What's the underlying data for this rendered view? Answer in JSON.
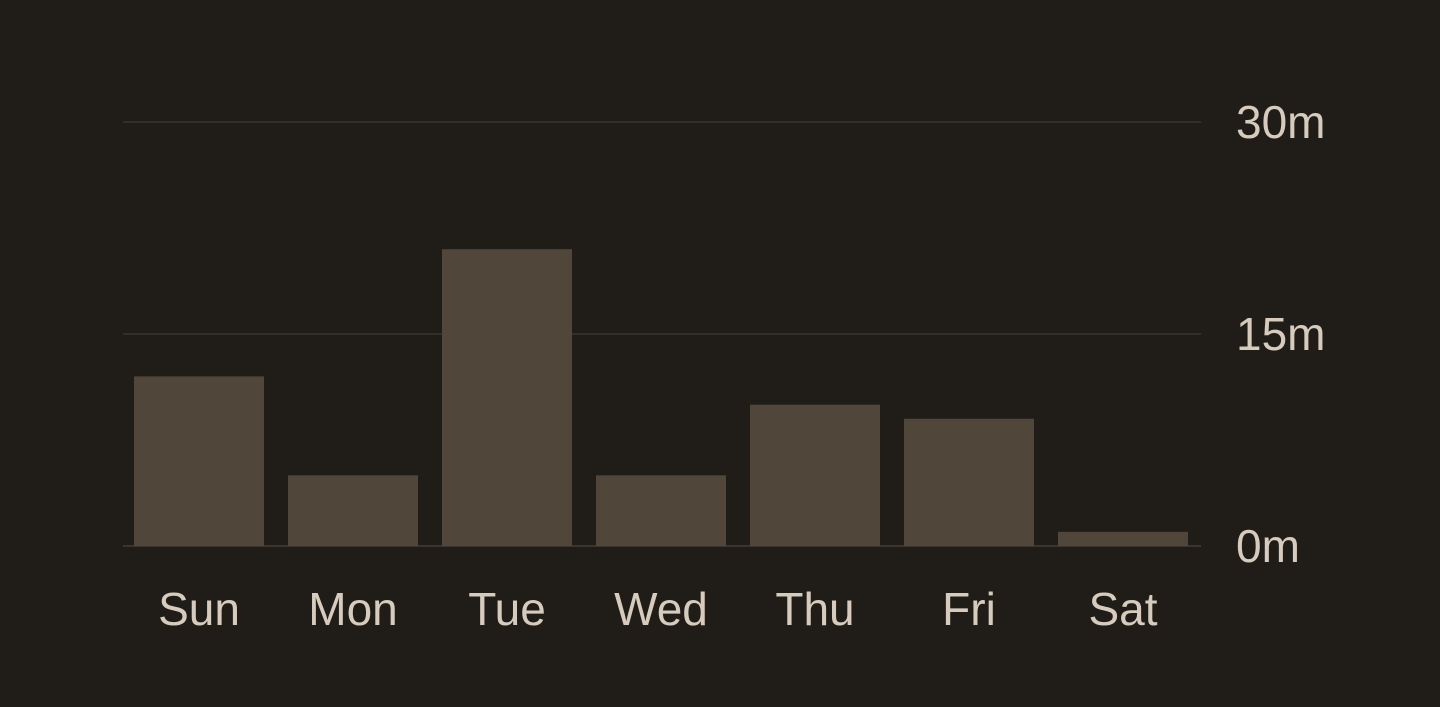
{
  "colors": {
    "background": "#201d19",
    "bar": "#50463a",
    "gridline": "#3a352e",
    "text": "#d6cbbd"
  },
  "chart_data": {
    "type": "bar",
    "title": "",
    "xlabel": "",
    "ylabel": "",
    "unit": "m",
    "categories": [
      "Sun",
      "Mon",
      "Tue",
      "Wed",
      "Thu",
      "Fri",
      "Sat"
    ],
    "values": [
      12,
      5,
      21,
      5,
      10,
      9,
      1
    ],
    "ylim": [
      0,
      30
    ],
    "yticks": [
      0,
      15,
      30
    ],
    "ytick_labels": [
      "0m",
      "15m",
      "30m"
    ],
    "y_axis_side": "right",
    "grid": true
  }
}
